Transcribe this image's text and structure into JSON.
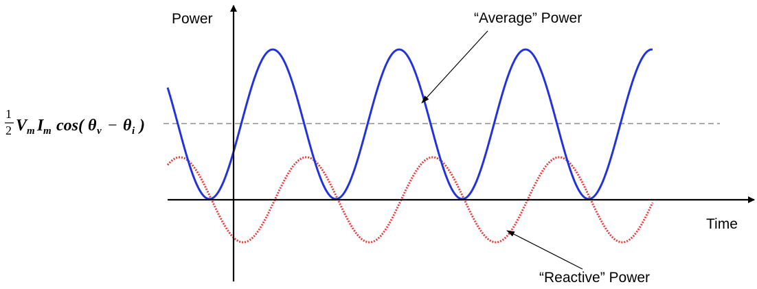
{
  "labels": {
    "y_axis": "Power",
    "x_axis": "Time",
    "average_power": "“Average” Power",
    "reactive_power": "“Reactive” Power"
  },
  "formula": {
    "fraction_numerator": "1",
    "fraction_denominator": "2",
    "v": "V",
    "v_sub": "m",
    "i": "I",
    "i_sub": "m",
    "func": "cos(",
    "theta_v": "θ",
    "theta_v_sub": "v",
    "minus": "−",
    "theta_i": "θ",
    "theta_i_sub": "i",
    "close": ")"
  },
  "colors": {
    "average_curve": "#2233dd",
    "reactive_curve": "#e8393b",
    "axis": "#000000",
    "dashed_line": "#777777"
  }
}
